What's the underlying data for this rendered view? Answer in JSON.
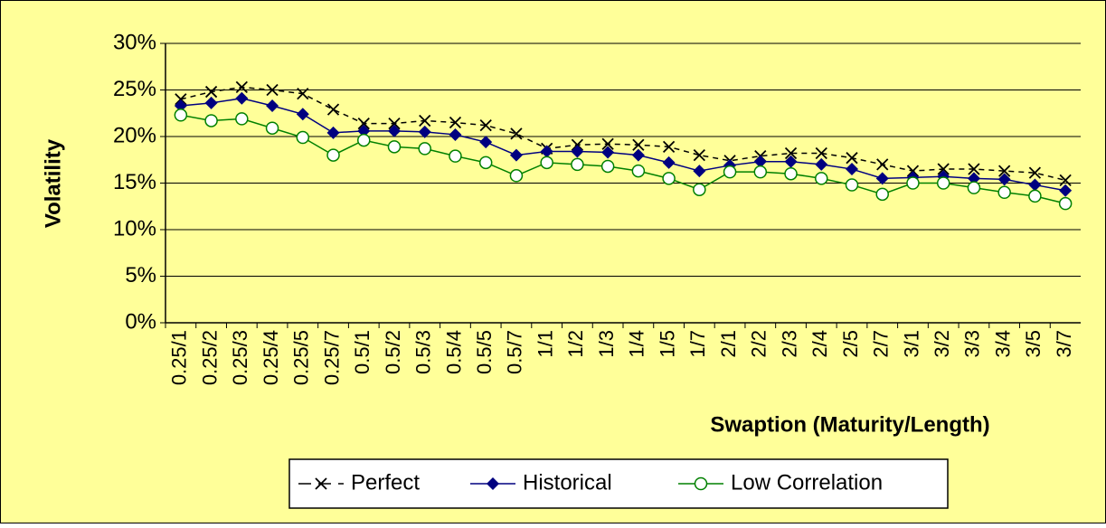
{
  "chart_data": {
    "type": "line",
    "xlabel": "Swaption (Maturity/Length)",
    "ylabel": "Volatility",
    "categories": [
      "0.25/1",
      "0.25/2",
      "0.25/3",
      "0.25/4",
      "0.25/5",
      "0.25/7",
      "0.5/1",
      "0.5/2",
      "0.5/3",
      "0.5/4",
      "0.5/5",
      "0.5/7",
      "1/1",
      "1/2",
      "1/3",
      "1/4",
      "1/5",
      "1/7",
      "2/1",
      "2/2",
      "2/3",
      "2/4",
      "2/5",
      "2/7",
      "3/1",
      "3/2",
      "3/3",
      "3/4",
      "3/5",
      "3/7"
    ],
    "series": [
      {
        "name": "Perfect",
        "color": "#000000",
        "marker": "x",
        "dashed": true,
        "values": [
          24.0,
          24.8,
          25.3,
          25.0,
          24.6,
          22.9,
          21.4,
          21.4,
          21.7,
          21.5,
          21.2,
          20.3,
          18.7,
          19.1,
          19.2,
          19.1,
          18.9,
          18.0,
          17.4,
          17.9,
          18.2,
          18.2,
          17.7,
          17.0,
          16.3,
          16.5,
          16.5,
          16.3,
          16.1,
          15.3
        ]
      },
      {
        "name": "Historical",
        "color": "#000080",
        "marker": "diamond",
        "dashed": false,
        "values": [
          23.3,
          23.6,
          24.1,
          23.3,
          22.4,
          20.4,
          20.6,
          20.6,
          20.5,
          20.2,
          19.4,
          18.0,
          18.4,
          18.4,
          18.3,
          18.0,
          17.2,
          16.3,
          16.9,
          17.3,
          17.3,
          17.0,
          16.5,
          15.5,
          15.6,
          15.7,
          15.5,
          15.4,
          14.8,
          14.2
        ]
      },
      {
        "name": "Low Correlation",
        "color": "#008000",
        "marker": "circle",
        "dashed": false,
        "values": [
          22.3,
          21.7,
          21.9,
          20.9,
          19.9,
          18.0,
          19.6,
          18.9,
          18.7,
          17.9,
          17.2,
          15.8,
          17.2,
          17.0,
          16.8,
          16.3,
          15.5,
          14.3,
          16.2,
          16.2,
          16.0,
          15.5,
          14.8,
          13.8,
          15.0,
          15.0,
          14.5,
          14.0,
          13.6,
          12.8
        ]
      }
    ],
    "ylim": [
      0,
      30
    ],
    "yticks": [
      {
        "value": 0,
        "label": "0%"
      },
      {
        "value": 5,
        "label": "5%"
      },
      {
        "value": 10,
        "label": "10%"
      },
      {
        "value": 15,
        "label": "15%"
      },
      {
        "value": 20,
        "label": "20%"
      },
      {
        "value": 25,
        "label": "25%"
      },
      {
        "value": 30,
        "label": "30%"
      }
    ],
    "grid": true,
    "legend": "bottom",
    "background": "#ffff99"
  }
}
